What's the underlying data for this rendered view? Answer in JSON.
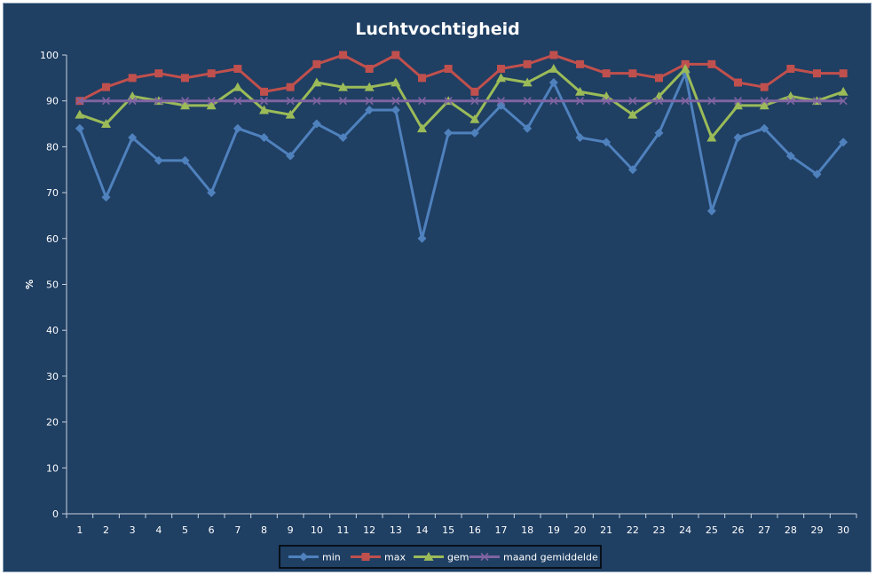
{
  "chart_data": {
    "type": "line",
    "title": "Luchtvochtigheid",
    "xlabel": "",
    "ylabel": "%",
    "ylim": [
      0,
      100
    ],
    "yticks": [
      0,
      10,
      20,
      30,
      40,
      50,
      60,
      70,
      80,
      90,
      100
    ],
    "x": [
      1,
      2,
      3,
      4,
      5,
      6,
      7,
      8,
      9,
      10,
      11,
      12,
      13,
      14,
      15,
      16,
      17,
      18,
      19,
      20,
      21,
      22,
      23,
      24,
      25,
      26,
      27,
      28,
      29,
      30
    ],
    "grid": false,
    "legend_position": "bottom",
    "series": [
      {
        "name": "min",
        "color": "#4f81bd",
        "marker": "diamond",
        "values": [
          84,
          69,
          82,
          77,
          77,
          70,
          84,
          82,
          78,
          85,
          82,
          88,
          88,
          60,
          83,
          83,
          89,
          84,
          94,
          82,
          81,
          75,
          83,
          96,
          66,
          82,
          84,
          78,
          74,
          81
        ]
      },
      {
        "name": "max",
        "color": "#c0504d",
        "marker": "square",
        "values": [
          90,
          93,
          95,
          96,
          95,
          96,
          97,
          92,
          93,
          98,
          100,
          97,
          100,
          95,
          97,
          92,
          97,
          98,
          100,
          98,
          96,
          96,
          95,
          98,
          98,
          94,
          93,
          97,
          96,
          96
        ]
      },
      {
        "name": "gem",
        "color": "#9bbb59",
        "marker": "triangle",
        "values": [
          87,
          85,
          91,
          90,
          89,
          89,
          93,
          88,
          87,
          94,
          93,
          93,
          94,
          84,
          90,
          86,
          95,
          94,
          97,
          92,
          91,
          87,
          91,
          97,
          82,
          89,
          89,
          91,
          90,
          92
        ]
      },
      {
        "name": "maand gemiddelde",
        "color": "#8064a2",
        "marker": "x",
        "values": [
          90,
          90,
          90,
          90,
          90,
          90,
          90,
          90,
          90,
          90,
          90,
          90,
          90,
          90,
          90,
          90,
          90,
          90,
          90,
          90,
          90,
          90,
          90,
          90,
          90,
          90,
          90,
          90,
          90,
          90
        ]
      }
    ]
  }
}
